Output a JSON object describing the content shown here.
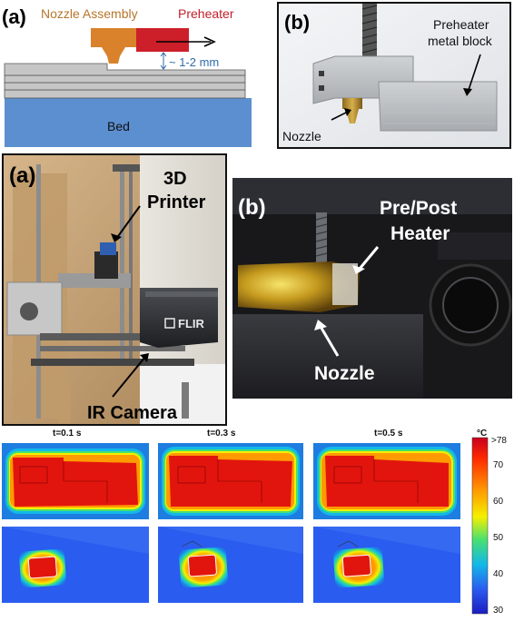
{
  "top_left": {
    "panel_label": "(a)",
    "nozzle_assembly": "Nozzle Assembly",
    "preheater": "Preheater",
    "gap_text": "~ 1-2 mm",
    "bed": "Bed",
    "colors": {
      "nozzle": "#d9822b",
      "preheater": "#cc1f2a",
      "bed": "#5b8fd0",
      "gap": "#2f6ba8"
    }
  },
  "top_right": {
    "panel_label": "(b)",
    "block_label_line1": "Preheater",
    "block_label_line2": "metal block",
    "nozzle": "Nozzle"
  },
  "mid_left": {
    "panel_label": "(a)",
    "printer_line1": "3D",
    "printer_line2": "Printer",
    "flir": "FLIR",
    "ir_camera": "IR Camera"
  },
  "mid_right": {
    "panel_label": "(b)",
    "heater_line1": "Pre/Post",
    "heater_line2": "Heater",
    "nozzle": "Nozzle"
  },
  "thermal": {
    "times": [
      "t=0.1 s",
      "t=0.3 s",
      "t=0.5 s"
    ],
    "colorbar": {
      "unit": "°C",
      "ticks": [
        ">78",
        "70",
        "60",
        "50",
        "40",
        "30"
      ],
      "colors": [
        "#c8001e",
        "#ff2a00",
        "#ff9a00",
        "#f5f000",
        "#48e070",
        "#13b8e8",
        "#2a5cf0",
        "#1c1cc0"
      ]
    }
  }
}
